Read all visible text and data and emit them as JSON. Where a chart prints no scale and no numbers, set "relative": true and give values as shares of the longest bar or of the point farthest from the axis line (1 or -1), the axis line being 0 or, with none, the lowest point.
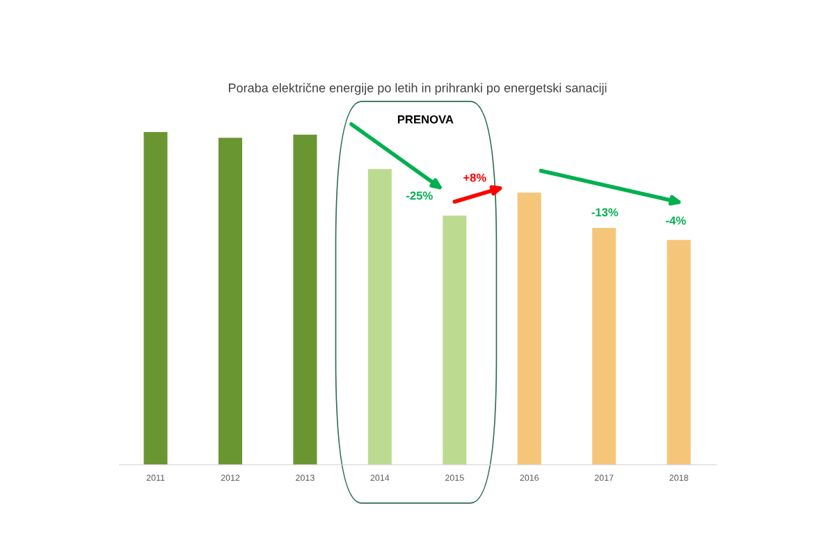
{
  "chart_data": {
    "type": "bar",
    "title": "Poraba električne energije po letih in prihranki po energetski sanaciji",
    "categories": [
      "2011",
      "2012",
      "2013",
      "2014",
      "2015",
      "2016",
      "2017",
      "2018"
    ],
    "values": [
      1,
      0.983,
      0.992,
      0.889,
      0.749,
      0.818,
      0.712,
      0.676
    ],
    "colors": [
      "#6a9632",
      "#6a9632",
      "#6a9632",
      "#bcdb91",
      "#bcdb91",
      "#f5c57a",
      "#f5c57a",
      "#f5c57a"
    ],
    "relative": true,
    "grid": false,
    "legend": false,
    "annotations": [
      "PRENOVA",
      "-25%",
      "+8%",
      "-13%",
      "-4%"
    ]
  }
}
